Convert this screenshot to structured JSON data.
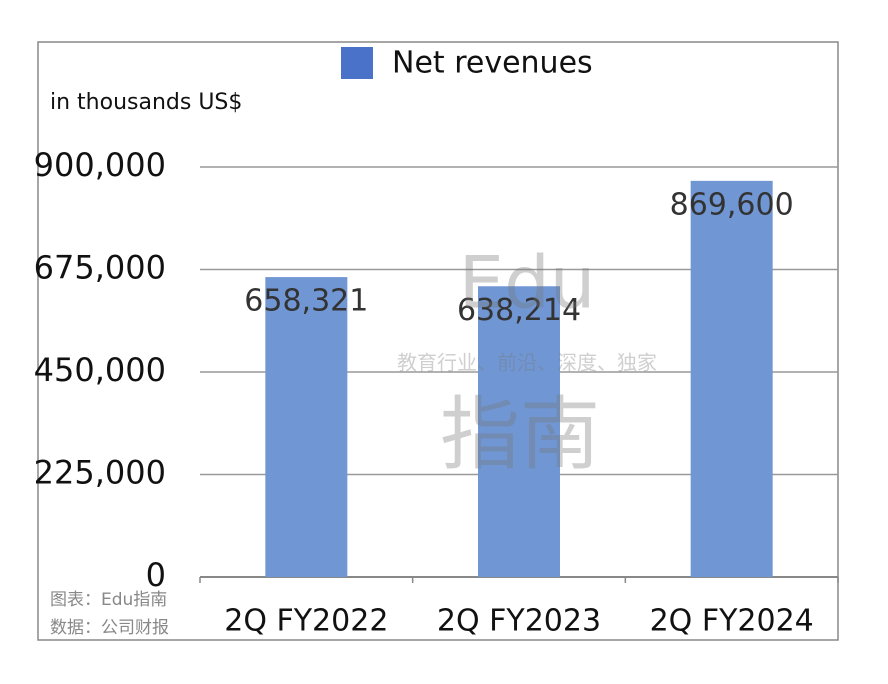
{
  "chart_data": {
    "type": "bar",
    "legend": "Net revenues",
    "y_axis_label": "in thousands US$",
    "categories": [
      "2Q FY2022",
      "2Q FY2023",
      "2Q FY2024"
    ],
    "values": [
      658321,
      638214,
      869600
    ],
    "value_labels": [
      "658,321",
      "638,214",
      "869,600"
    ],
    "color": "#7096d4",
    "legend_color": "#4a72c8",
    "ylim": [
      0,
      900000
    ],
    "yticks": [
      0,
      {
        "value": 225000,
        "label": "225,000"
      },
      {
        "value": 450000,
        "label": "450,000"
      },
      {
        "value": 675000,
        "label": "675,000"
      },
      {
        "value": 900000,
        "label": "900,000"
      }
    ],
    "grid": true,
    "notes": [
      "图表：Edu指南",
      "数据：公司财报"
    ],
    "watermark": [
      "Edu",
      "教育行业、前沿、深度、独家",
      "指南"
    ]
  }
}
